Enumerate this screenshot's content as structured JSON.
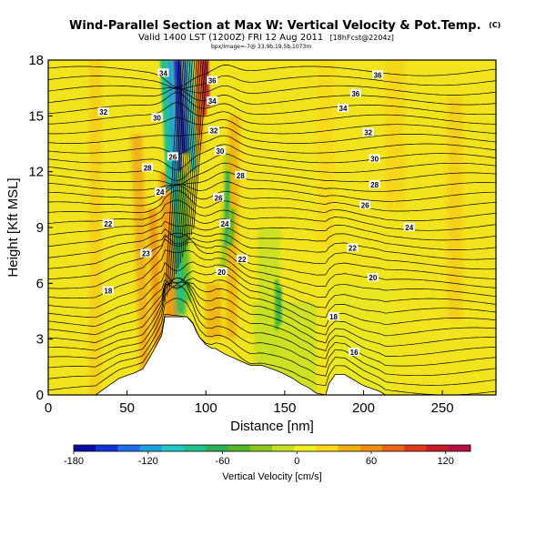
{
  "chart_data": {
    "type": "heatmap",
    "title": "Wind-Parallel Section at Max W: Vertical Velocity & Pot.Temp.",
    "title_mark": "(C)",
    "subtitle": "Valid 1400 LST (1200Z) FRI 12 Aug 2011",
    "subtitle_run": "[18hFcst@2204z]",
    "small_line": "bpx/Image=-7@ 33.9b,19.5b,1073m",
    "xlabel": "Distance [nm]",
    "ylabel": "Height [Kft MSL]",
    "xlim": [
      0,
      284
    ],
    "ylim": [
      0,
      18
    ],
    "xticks": [
      0,
      50,
      100,
      150,
      200,
      250
    ],
    "yticks": [
      0,
      3,
      6,
      9,
      12,
      15,
      18
    ],
    "colorbar": {
      "label": "Vertical Velocity [cm/s]",
      "range": [
        -180,
        140
      ],
      "ticks": [
        -180,
        -120,
        -60,
        0,
        60,
        120
      ],
      "colors": [
        "#0a0aa8",
        "#1034d8",
        "#1e6ee8",
        "#1ea0dc",
        "#22c8c8",
        "#22c08c",
        "#2cb05a",
        "#54b828",
        "#8cc81c",
        "#c8e024",
        "#f0f020",
        "#f8d818",
        "#f0b010",
        "#f08c10",
        "#ec6414",
        "#e03818",
        "#c81c28",
        "#b41040"
      ]
    },
    "series": [
      {
        "name": "Vertical Velocity",
        "kind": "filled-field"
      },
      {
        "name": "Potential Temperature",
        "kind": "contours"
      }
    ],
    "terrain_profile": {
      "x": [
        0,
        15,
        20,
        25,
        30,
        35,
        40,
        45,
        55,
        60,
        65,
        72,
        74,
        78,
        86,
        88,
        92,
        94,
        96,
        100,
        104,
        106,
        112,
        120,
        128,
        135,
        142,
        148,
        155,
        160,
        165,
        170,
        176,
        178,
        182,
        188,
        194,
        200,
        210,
        214,
        222,
        230,
        240,
        250,
        265,
        284
      ],
      "y": [
        0,
        0,
        0,
        0,
        0,
        0.3,
        0.6,
        0.9,
        1.2,
        1.4,
        2.1,
        3.2,
        4.2,
        4.2,
        4.2,
        4.2,
        3.8,
        3.4,
        3.1,
        2.7,
        2.5,
        2.5,
        2.2,
        1.9,
        1.6,
        1.6,
        1.4,
        1.2,
        0.9,
        0.6,
        0.4,
        0.1,
        0,
        0.6,
        1.1,
        1.1,
        0.8,
        0.5,
        0.2,
        0,
        0,
        0,
        0,
        0,
        0,
        0
      ]
    },
    "contour_labels": [
      {
        "text": "36",
        "x": 209,
        "y": 17.2
      },
      {
        "text": "36",
        "x": 195,
        "y": 16.2
      },
      {
        "text": "34",
        "x": 187,
        "y": 15.4
      },
      {
        "text": "34",
        "x": 73,
        "y": 17.3
      },
      {
        "text": "34",
        "x": 104,
        "y": 15.8
      },
      {
        "text": "36",
        "x": 104,
        "y": 16.9
      },
      {
        "text": "32",
        "x": 35,
        "y": 15.2
      },
      {
        "text": "30",
        "x": 69,
        "y": 14.9
      },
      {
        "text": "32",
        "x": 105,
        "y": 14.2
      },
      {
        "text": "32",
        "x": 203,
        "y": 14.1
      },
      {
        "text": "30",
        "x": 109,
        "y": 13.1
      },
      {
        "text": "30",
        "x": 207,
        "y": 12.7
      },
      {
        "text": "28",
        "x": 63,
        "y": 12.2
      },
      {
        "text": "26",
        "x": 79,
        "y": 12.8
      },
      {
        "text": "28",
        "x": 122,
        "y": 11.8
      },
      {
        "text": "28",
        "x": 207,
        "y": 11.3
      },
      {
        "text": "24",
        "x": 71,
        "y": 10.9
      },
      {
        "text": "26",
        "x": 108,
        "y": 10.6
      },
      {
        "text": "26",
        "x": 201,
        "y": 10.2
      },
      {
        "text": "22",
        "x": 38,
        "y": 9.2
      },
      {
        "text": "24",
        "x": 112,
        "y": 9.2
      },
      {
        "text": "24",
        "x": 229,
        "y": 9.0
      },
      {
        "text": "22",
        "x": 193,
        "y": 7.9
      },
      {
        "text": "23",
        "x": 62,
        "y": 7.6
      },
      {
        "text": "22",
        "x": 123,
        "y": 7.3
      },
      {
        "text": "20",
        "x": 110,
        "y": 6.6
      },
      {
        "text": "20",
        "x": 206,
        "y": 6.3
      },
      {
        "text": "18",
        "x": 38,
        "y": 5.6
      },
      {
        "text": "18",
        "x": 181,
        "y": 4.2
      },
      {
        "text": "16",
        "x": 194,
        "y": 2.3
      }
    ]
  }
}
